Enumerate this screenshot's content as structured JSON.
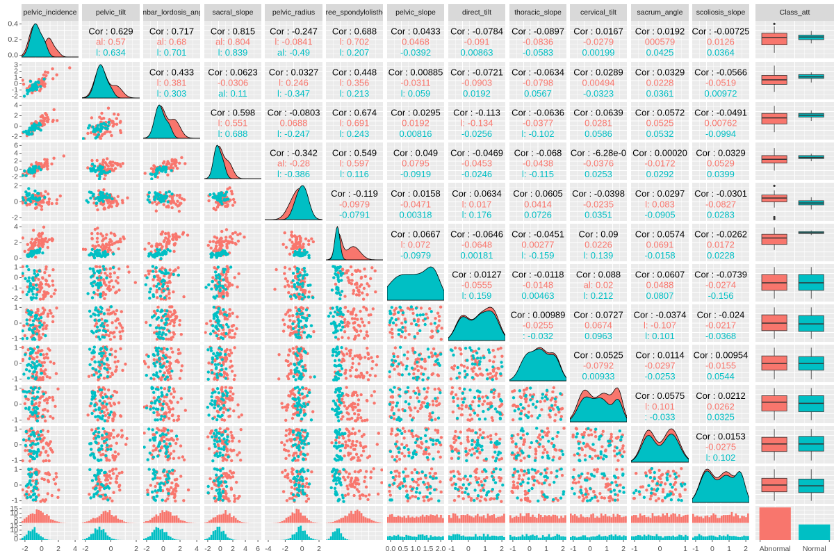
{
  "chart_data": {
    "type": "scatter",
    "title": "",
    "legend": "none",
    "grid": true,
    "colors": {
      "Abnormal": "#F8766D",
      "Normal": "#00BFC4"
    },
    "classes": [
      "Abnormal",
      "Normal"
    ],
    "strip_labels": [
      "pelvic_incidence",
      "pelvic_tilt",
      "lumbar_lordosis_angle",
      "sacral_slope",
      "pelvic_radius",
      "degree_spondylolisthesis",
      "pelvic_slope",
      "direct_tilt",
      "thoracic_slope",
      "cervical_tilt",
      "sacrum_angle",
      "scoliosis_slope",
      "Class_att"
    ],
    "x_axis_ticks": [
      [
        "-2",
        "0",
        "2",
        "4"
      ],
      [
        "-2",
        "0",
        "2"
      ],
      [
        "-2",
        "0",
        "2",
        "4"
      ],
      [
        "-2",
        "0",
        "2",
        "4",
        "6"
      ],
      [
        "-4",
        "-2",
        "0",
        "2"
      ],
      [
        "",
        "",
        "",
        ""
      ],
      [
        "0.0",
        "0.5",
        "1.0",
        "1.5",
        "2.0"
      ],
      [
        "-1",
        "0",
        "1",
        "2"
      ],
      [
        "-1",
        "0",
        "1",
        "2"
      ],
      [
        "-1",
        "0",
        "1",
        "2"
      ],
      [
        "-1",
        "0",
        "1"
      ],
      [
        "-1",
        "0",
        "1",
        "2"
      ],
      [
        "Abnormal",
        "Normal"
      ]
    ],
    "y_axis_ticks": [
      [
        "0.0",
        "0.2",
        "0.4"
      ],
      [
        "-2",
        "-1",
        "0",
        "1",
        "2",
        "3"
      ],
      [
        "-2",
        "0",
        "2",
        "4"
      ],
      [
        "-2",
        "0",
        "2",
        "4",
        "6"
      ],
      [
        "-2",
        "0",
        "2"
      ],
      [
        "0",
        "2",
        "4"
      ],
      [
        "-2",
        "-1",
        "0",
        "1"
      ],
      [
        "-1",
        "0",
        "1"
      ],
      [
        "-1",
        "0",
        "1"
      ],
      [
        "-1",
        "0",
        "1"
      ],
      [
        "-1",
        "0",
        "1"
      ],
      [
        "-1",
        "0",
        "1"
      ],
      [
        "0",
        "5",
        "10",
        "15",
        "0",
        "5",
        "10",
        "15"
      ]
    ],
    "correlations": [
      {
        "row": 1,
        "col": 2,
        "cor": "Cor : 0.629",
        "abnormal": "al: 0.57",
        "normal": "l: 0.634"
      },
      {
        "row": 1,
        "col": 3,
        "cor": "Cor : 0.717",
        "abnormal": "al: 0.68",
        "normal": "l: 0.701"
      },
      {
        "row": 1,
        "col": 4,
        "cor": "Cor : 0.815",
        "abnormal": "al: 0.804",
        "normal": "l: 0.839"
      },
      {
        "row": 1,
        "col": 5,
        "cor": "Cor : -0.247",
        "abnormal": "l: -0.0841",
        "normal": "al: -0.49"
      },
      {
        "row": 1,
        "col": 6,
        "cor": "Cor : 0.688",
        "abnormal": "l: 0.702",
        "normal": "l: 0.207"
      },
      {
        "row": 1,
        "col": 7,
        "cor": "Cor : 0.0433",
        "abnormal": "0.0468",
        "normal": "-0.0392"
      },
      {
        "row": 1,
        "col": 8,
        "cor": "Cor : -0.0784",
        "abnormal": "-0.091",
        "normal": "0.00863"
      },
      {
        "row": 1,
        "col": 9,
        "cor": "Cor : -0.0897",
        "abnormal": "-0.0836",
        "normal": "-0.0583"
      },
      {
        "row": 1,
        "col": 10,
        "cor": "Cor : 0.0167",
        "abnormal": "-0.0279",
        "normal": "0.00199"
      },
      {
        "row": 1,
        "col": 11,
        "cor": "Cor : 0.0192",
        "abnormal": "000579",
        "normal": "0.0425"
      },
      {
        "row": 1,
        "col": 12,
        "cor": "Cor : -0.00725",
        "abnormal": "0.0126",
        "normal": "0.0364"
      },
      {
        "row": 2,
        "col": 3,
        "cor": "Cor : 0.433",
        "abnormal": "l: 0.381",
        "normal": "l: 0.303"
      },
      {
        "row": 2,
        "col": 4,
        "cor": "Cor : 0.0623",
        "abnormal": "-0.0306",
        "normal": "al: 0.11"
      },
      {
        "row": 2,
        "col": 5,
        "cor": "Cor : 0.0327",
        "abnormal": "l: 0.246",
        "normal": "l: -0.347"
      },
      {
        "row": 2,
        "col": 6,
        "cor": "Cor : 0.448",
        "abnormal": "l: 0.356",
        "normal": "l: 0.213"
      },
      {
        "row": 2,
        "col": 7,
        "cor": "Cor : 0.00885",
        "abnormal": "-0.0311",
        "normal": "l: 0.059"
      },
      {
        "row": 2,
        "col": 8,
        "cor": "Cor : -0.0721",
        "abnormal": "-0.0903",
        "normal": "0.0192"
      },
      {
        "row": 2,
        "col": 9,
        "cor": "Cor : -0.0634",
        "abnormal": "-0.0798",
        "normal": "0.0567"
      },
      {
        "row": 2,
        "col": 10,
        "cor": "Cor : 0.0289",
        "abnormal": "0.00494",
        "normal": "-0.0323"
      },
      {
        "row": 2,
        "col": 11,
        "cor": "Cor : 0.0329",
        "abnormal": "0.0228",
        "normal": "0.0361"
      },
      {
        "row": 2,
        "col": 12,
        "cor": "Cor : -0.0566",
        "abnormal": "-0.0519",
        "normal": "0.00972"
      },
      {
        "row": 3,
        "col": 4,
        "cor": "Cor : 0.598",
        "abnormal": "l: 0.551",
        "normal": "l: 0.688"
      },
      {
        "row": 3,
        "col": 5,
        "cor": "Cor : -0.0803",
        "abnormal": "0.0688",
        "normal": "l: -0.247"
      },
      {
        "row": 3,
        "col": 6,
        "cor": "Cor : 0.674",
        "abnormal": "l: 0.691",
        "normal": "l: 0.243"
      },
      {
        "row": 3,
        "col": 7,
        "cor": "Cor : 0.0295",
        "abnormal": "0.0192",
        "normal": "0.00816"
      },
      {
        "row": 3,
        "col": 8,
        "cor": "Cor : -0.113",
        "abnormal": "l: -0.134",
        "normal": "-0.0256"
      },
      {
        "row": 3,
        "col": 9,
        "cor": "Cor : -0.0636",
        "abnormal": "-0.0377",
        "normal": "l: -0.102"
      },
      {
        "row": 3,
        "col": 10,
        "cor": "Cor : 0.0639",
        "abnormal": "0.0281",
        "normal": "0.0586"
      },
      {
        "row": 3,
        "col": 11,
        "cor": "Cor : 0.0572",
        "abnormal": "0.0525",
        "normal": "0.0532"
      },
      {
        "row": 3,
        "col": 12,
        "cor": "Cor : -0.0491",
        "abnormal": "0.00762",
        "normal": "-0.0994"
      },
      {
        "row": 4,
        "col": 5,
        "cor": "Cor : -0.342",
        "abnormal": "al: -0.28",
        "normal": "l: -0.386"
      },
      {
        "row": 4,
        "col": 6,
        "cor": "Cor : 0.549",
        "abnormal": "l: 0.597",
        "normal": "l: 0.116"
      },
      {
        "row": 4,
        "col": 7,
        "cor": "Cor : 0.049",
        "abnormal": "0.0795",
        "normal": "-0.0919"
      },
      {
        "row": 4,
        "col": 8,
        "cor": "Cor : -0.0469",
        "abnormal": "-0.0453",
        "normal": "-0.0246"
      },
      {
        "row": 4,
        "col": 9,
        "cor": "Cor : -0.068",
        "abnormal": "-0.0438",
        "normal": "l: -0.115"
      },
      {
        "row": 4,
        "col": 10,
        "cor": "Cor : -6.28e-0",
        "abnormal": "-0.0376",
        "normal": "0.0253"
      },
      {
        "row": 4,
        "col": 11,
        "cor": "Cor : 0.00020",
        "abnormal": "-0.0172",
        "normal": "0.0292"
      },
      {
        "row": 4,
        "col": 12,
        "cor": "Cor : 0.0329",
        "abnormal": "0.0529",
        "normal": "0.0399"
      },
      {
        "row": 5,
        "col": 6,
        "cor": "Cor : -0.119",
        "abnormal": "-0.0979",
        "normal": "-0.0791"
      },
      {
        "row": 5,
        "col": 7,
        "cor": "Cor : 0.0158",
        "abnormal": "-0.0471",
        "normal": "0.00318"
      },
      {
        "row": 5,
        "col": 8,
        "cor": "Cor : 0.0634",
        "abnormal": "l: 0.017",
        "normal": "l: 0.176"
      },
      {
        "row": 5,
        "col": 9,
        "cor": "Cor : 0.0605",
        "abnormal": "0.0414",
        "normal": "0.0726"
      },
      {
        "row": 5,
        "col": 10,
        "cor": "Cor : -0.0398",
        "abnormal": "-0.0235",
        "normal": "0.0351"
      },
      {
        "row": 5,
        "col": 11,
        "cor": "Cor : 0.0297",
        "abnormal": "l: 0.083",
        "normal": "-0.0905"
      },
      {
        "row": 5,
        "col": 12,
        "cor": "Cor : -0.0301",
        "abnormal": "-0.0827",
        "normal": "0.0283"
      },
      {
        "row": 6,
        "col": 7,
        "cor": "Cor : 0.0667",
        "abnormal": "l: 0.072",
        "normal": "-0.0979"
      },
      {
        "row": 6,
        "col": 8,
        "cor": "Cor : -0.0646",
        "abnormal": "-0.0648",
        "normal": "0.00181"
      },
      {
        "row": 6,
        "col": 9,
        "cor": "Cor : -0.0451",
        "abnormal": "0.00277",
        "normal": "l: -0.159"
      },
      {
        "row": 6,
        "col": 10,
        "cor": "Cor : 0.09",
        "abnormal": "0.0226",
        "normal": "l: 0.139"
      },
      {
        "row": 6,
        "col": 11,
        "cor": "Cor : 0.0574",
        "abnormal": "0.0691",
        "normal": "-0.0158"
      },
      {
        "row": 6,
        "col": 12,
        "cor": "Cor : -0.0262",
        "abnormal": "0.0172",
        "normal": "0.0228"
      },
      {
        "row": 7,
        "col": 8,
        "cor": "Cor : 0.0127",
        "abnormal": "-0.0555",
        "normal": "l: 0.159"
      },
      {
        "row": 7,
        "col": 9,
        "cor": "Cor : -0.0118",
        "abnormal": "-0.0148",
        "normal": "0.00463"
      },
      {
        "row": 7,
        "col": 10,
        "cor": "Cor : 0.088",
        "abnormal": "al: 0.02",
        "normal": "l: 0.212"
      },
      {
        "row": 7,
        "col": 11,
        "cor": "Cor : 0.0607",
        "abnormal": "0.0488",
        "normal": "0.0807"
      },
      {
        "row": 7,
        "col": 12,
        "cor": "Cor : -0.0739",
        "abnormal": "-0.0274",
        "normal": "-0.156"
      },
      {
        "row": 8,
        "col": 9,
        "cor": "Cor : 0.00989",
        "abnormal": "-0.0255",
        "normal": ": -0.032"
      },
      {
        "row": 8,
        "col": 10,
        "cor": "Cor : 0.0727",
        "abnormal": "0.0674",
        "normal": "0.0963"
      },
      {
        "row": 8,
        "col": 11,
        "cor": "Cor : -0.0374",
        "abnormal": "l: -0.107",
        "normal": "l: 0.101"
      },
      {
        "row": 8,
        "col": 12,
        "cor": "Cor : -0.024",
        "abnormal": "-0.0217",
        "normal": "-0.0368"
      },
      {
        "row": 9,
        "col": 10,
        "cor": "Cor : 0.0525",
        "abnormal": "-0.0792",
        "normal": "0.00933"
      },
      {
        "row": 9,
        "col": 11,
        "cor": "Cor : 0.0114",
        "abnormal": "-0.0297",
        "normal": "-0.0253"
      },
      {
        "row": 9,
        "col": 12,
        "cor": "Cor : 0.00954",
        "abnormal": "-0.0155",
        "normal": "0.0544"
      },
      {
        "row": 10,
        "col": 11,
        "cor": "Cor : 0.0575",
        "abnormal": "l: 0.101",
        "normal": ": -0.033"
      },
      {
        "row": 10,
        "col": 12,
        "cor": "Cor : 0.0212",
        "abnormal": "0.0262",
        "normal": "0.0325"
      },
      {
        "row": 11,
        "col": 12,
        "cor": "Cor : 0.0153",
        "abnormal": "-0.0275",
        "normal": "l: 0.102"
      }
    ],
    "class_counts": {
      "Abnormal": 210,
      "Normal": 100
    },
    "class_count_ylim": [
      0,
      220
    ]
  }
}
